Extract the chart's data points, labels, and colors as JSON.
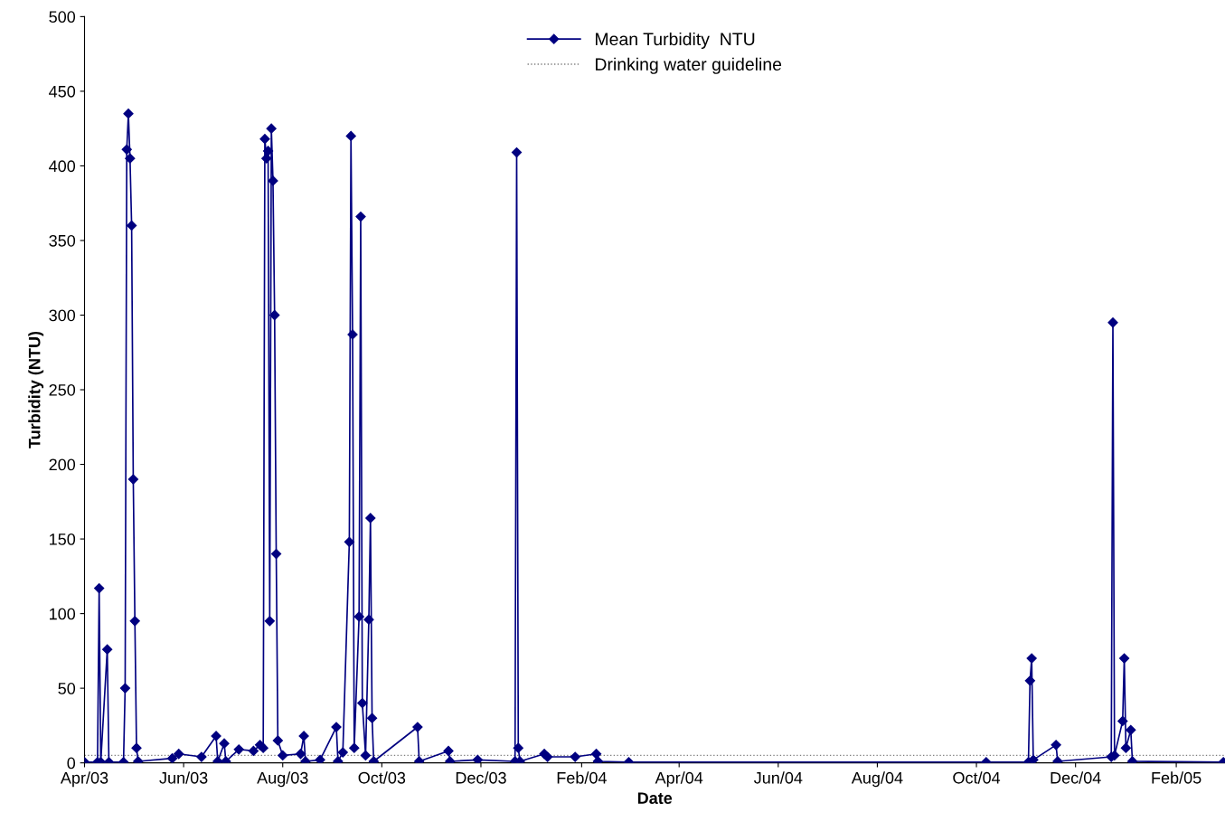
{
  "chart_data": {
    "type": "line",
    "xlabel": "Date",
    "ylabel": "Turbidity (NTU)",
    "x": [
      "2003-04-01",
      "2003-04-09",
      "2003-04-10",
      "2003-04-11",
      "2003-04-15",
      "2003-04-16",
      "2003-04-25",
      "2003-04-26",
      "2003-04-27",
      "2003-04-28",
      "2003-04-29",
      "2003-04-30",
      "2003-05-01",
      "2003-05-02",
      "2003-05-03",
      "2003-05-04",
      "2003-05-25",
      "2003-05-29",
      "2003-06-12",
      "2003-06-21",
      "2003-06-22",
      "2003-06-26",
      "2003-06-27",
      "2003-07-05",
      "2003-07-14",
      "2003-07-18",
      "2003-07-20",
      "2003-07-21",
      "2003-07-22",
      "2003-07-23",
      "2003-07-24",
      "2003-07-25",
      "2003-07-26",
      "2003-07-27",
      "2003-07-28",
      "2003-07-29",
      "2003-08-01",
      "2003-08-12",
      "2003-08-14",
      "2003-08-15",
      "2003-08-24",
      "2003-09-03",
      "2003-09-04",
      "2003-09-07",
      "2003-09-11",
      "2003-09-12",
      "2003-09-13",
      "2003-09-14",
      "2003-09-17",
      "2003-09-18",
      "2003-09-19",
      "2003-09-21",
      "2003-09-23",
      "2003-09-24",
      "2003-09-25",
      "2003-09-26",
      "2003-10-23",
      "2003-10-24",
      "2003-11-11",
      "2003-11-12",
      "2003-11-29",
      "2003-12-22",
      "2003-12-23",
      "2003-12-24",
      "2003-12-25",
      "2004-01-09",
      "2004-01-11",
      "2004-01-28",
      "2004-02-10",
      "2004-02-11",
      "2004-03-01",
      "2004-10-07",
      "2004-11-02",
      "2004-11-03",
      "2004-11-04",
      "2004-11-05",
      "2004-11-19",
      "2004-11-20",
      "2004-12-23",
      "2004-12-24",
      "2004-12-25",
      "2004-12-30",
      "2004-12-31",
      "2005-01-01",
      "2005-01-04",
      "2005-01-05",
      "2005-03-02"
    ],
    "series": [
      {
        "name": "Mean Turbidity  NTU",
        "color": "#000080",
        "marker": "diamond",
        "values": [
          0.5,
          0.5,
          117,
          0.5,
          76,
          0.5,
          0.5,
          50,
          411,
          435,
          405,
          360,
          190,
          95,
          10,
          1,
          3,
          6,
          4,
          18,
          1,
          13,
          1,
          9,
          8,
          12,
          10,
          418,
          405,
          410,
          95,
          425,
          390,
          300,
          140,
          15,
          5,
          6,
          18,
          1,
          2,
          24,
          1,
          7,
          148,
          420,
          287,
          10,
          98,
          366,
          40,
          5,
          96,
          164,
          30,
          1,
          24,
          1,
          8,
          1,
          2,
          1,
          409,
          10,
          1,
          6,
          4,
          4,
          6,
          1,
          0.5,
          0.5,
          0.5,
          55,
          70,
          2,
          12,
          1,
          4,
          295,
          5,
          28,
          70,
          10,
          22,
          1,
          0.5
        ]
      }
    ],
    "ref_lines": [
      {
        "axis": "y",
        "value": 5,
        "label": "Drinking water guideline",
        "color": "#808080",
        "line_style": "dotted"
      }
    ],
    "xlim": [
      "2003-04-01",
      "2005-03-03"
    ],
    "xticks": [
      {
        "value": "2003-04-01",
        "label": "Apr/03"
      },
      {
        "value": "2003-06-01",
        "label": "Jun/03"
      },
      {
        "value": "2003-08-01",
        "label": "Aug/03"
      },
      {
        "value": "2003-10-01",
        "label": "Oct/03"
      },
      {
        "value": "2003-12-01",
        "label": "Dec/03"
      },
      {
        "value": "2004-02-01",
        "label": "Feb/04"
      },
      {
        "value": "2004-04-01",
        "label": "Apr/04"
      },
      {
        "value": "2004-06-01",
        "label": "Jun/04"
      },
      {
        "value": "2004-08-01",
        "label": "Aug/04"
      },
      {
        "value": "2004-10-01",
        "label": "Oct/04"
      },
      {
        "value": "2004-12-01",
        "label": "Dec/04"
      },
      {
        "value": "2005-02-01",
        "label": "Feb/05"
      }
    ],
    "ylim": [
      0,
      500
    ],
    "yticks": [
      0,
      50,
      100,
      150,
      200,
      250,
      300,
      350,
      400,
      450,
      500
    ],
    "grid": false,
    "legend": "top",
    "line_style": "solid"
  }
}
